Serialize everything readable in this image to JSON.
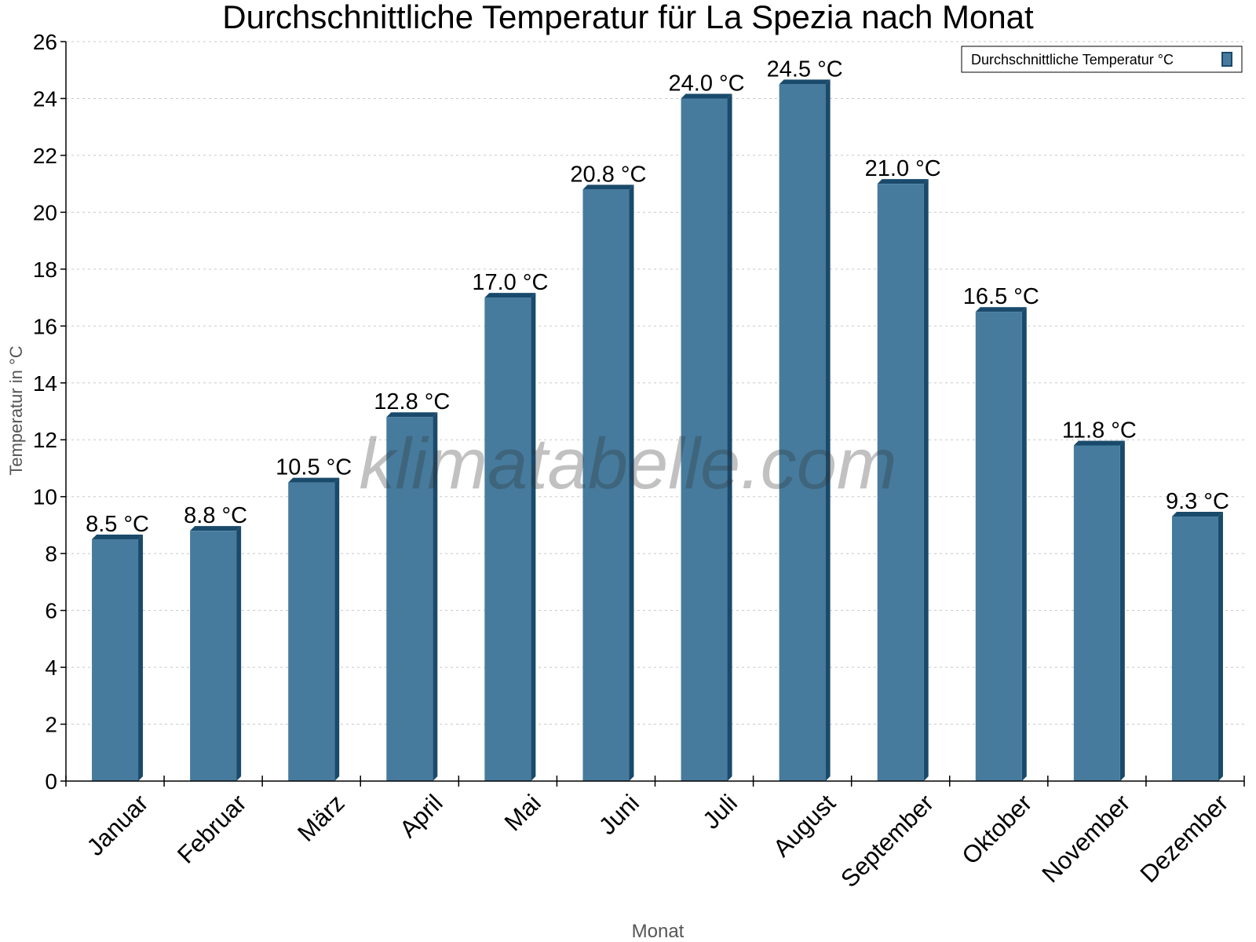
{
  "chart_data": {
    "type": "bar",
    "title": "Durchschnittliche Temperatur für La Spezia nach Monat",
    "xlabel": "Monat",
    "ylabel": "Temperatur in °C",
    "categories": [
      "Januar",
      "Februar",
      "März",
      "April",
      "Mai",
      "Juni",
      "Juli",
      "August",
      "September",
      "Oktober",
      "November",
      "Dezember"
    ],
    "series": [
      {
        "name": "Durchschnittliche Temperatur °C",
        "values": [
          8.5,
          8.8,
          10.5,
          12.8,
          17.0,
          20.8,
          24.0,
          24.5,
          21.0,
          16.5,
          11.8,
          9.3
        ]
      }
    ],
    "data_label_unit": "°C",
    "ylim": [
      0,
      26
    ],
    "yticks": [
      0,
      2,
      4,
      6,
      8,
      10,
      12,
      14,
      16,
      18,
      20,
      22,
      24,
      26
    ],
    "grid": "horizontal dashed",
    "legend_position": "top-right",
    "colors": {
      "bar_front": "#467b9d",
      "bar_side": "#1a4a6b"
    },
    "watermark": "klimatabelle.com"
  }
}
